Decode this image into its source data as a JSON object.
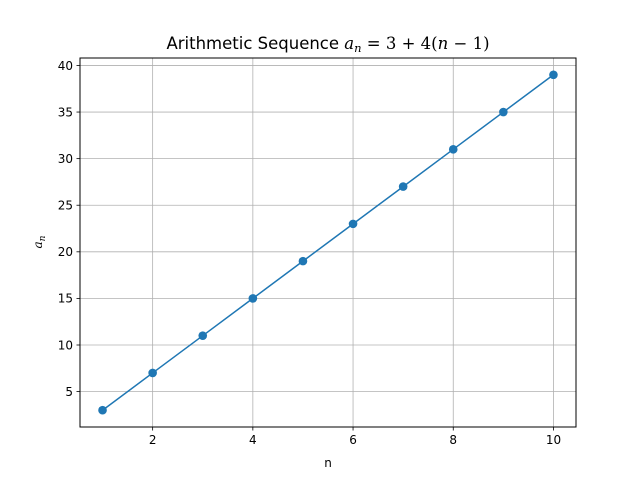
{
  "chart_data": {
    "type": "line",
    "title": "Arithmetic Sequence a_n = 3 + 4(n - 1)",
    "title_parts": {
      "prefix": "Arithmetic Sequence ",
      "var": "a",
      "sub": "n",
      "eq": " = 3 + 4(",
      "n": "n",
      "tail": " − 1)"
    },
    "xlabel": "n",
    "ylabel": "a_n",
    "ylabel_parts": {
      "var": "a",
      "sub": "n"
    },
    "xlim": [
      0.55,
      10.45
    ],
    "ylim": [
      1.2,
      40.8
    ],
    "xticks": [
      2,
      4,
      6,
      8,
      10
    ],
    "yticks": [
      5,
      10,
      15,
      20,
      25,
      30,
      35,
      40
    ],
    "grid": true,
    "legend": "none",
    "series": [
      {
        "x": [
          1,
          2,
          3,
          4,
          5,
          6,
          7,
          8,
          9,
          10
        ],
        "values": [
          3,
          7,
          11,
          15,
          19,
          23,
          27,
          31,
          35,
          39
        ],
        "color": "#1f77b4",
        "marker": "circle"
      }
    ],
    "colors": {
      "grid": "#b0b0b0",
      "axes": "#000000",
      "line": "#1f77b4"
    }
  }
}
